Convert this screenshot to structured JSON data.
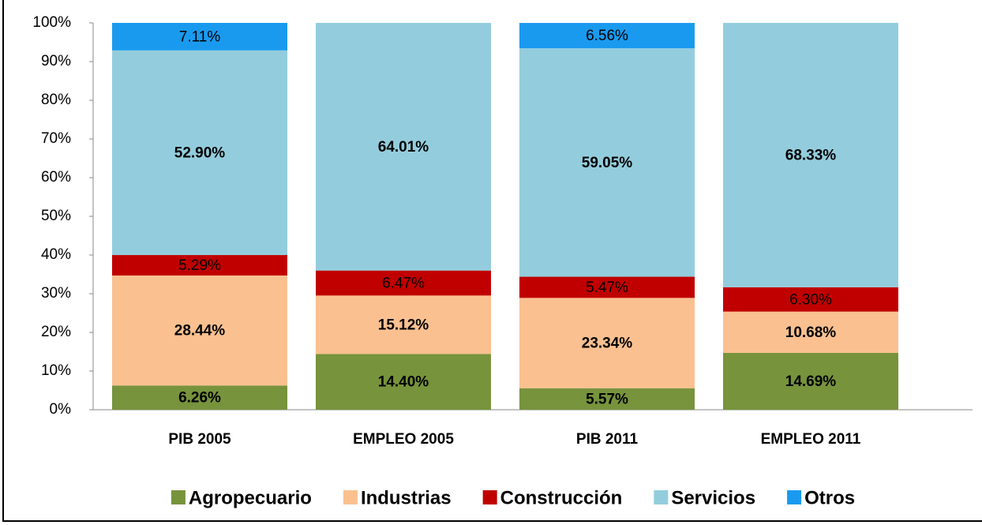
{
  "chart_data": {
    "type": "stacked_bar",
    "categories": [
      "PIB 2005",
      "EMPLEO 2005",
      "PIB 2011",
      "EMPLEO 2011"
    ],
    "series": [
      {
        "name": "Agropecuario",
        "color": "#77933c",
        "values": [
          6.26,
          14.4,
          5.57,
          14.69
        ],
        "value_labels": [
          "6.26%",
          "14.40%",
          "5.57%",
          "14.69%"
        ]
      },
      {
        "name": "Industrias",
        "color": "#fac090",
        "values": [
          28.44,
          15.12,
          23.34,
          10.68
        ],
        "value_labels": [
          "28.44%",
          "15.12%",
          "23.34%",
          "10.68%"
        ]
      },
      {
        "name": "Construcción",
        "color": "#c00000",
        "values": [
          5.29,
          6.47,
          5.47,
          6.3
        ],
        "value_labels": [
          "5.29%",
          "6.47%",
          "5.47%",
          "6.30%"
        ]
      },
      {
        "name": "Servicios",
        "color": "#93cddd",
        "values": [
          52.9,
          64.01,
          59.05,
          68.33
        ],
        "value_labels": [
          "52.90%",
          "64.01%",
          "59.05%",
          "68.33%"
        ]
      },
      {
        "name": "Otros",
        "color": "#1a9aef",
        "values": [
          7.11,
          null,
          6.56,
          null
        ],
        "value_labels": [
          "7.11%",
          null,
          "6.56%",
          null
        ]
      }
    ],
    "ylim": [
      0,
      100
    ],
    "yticks": [
      {
        "value": 0,
        "label": "0%"
      },
      {
        "value": 10,
        "label": "10%"
      },
      {
        "value": 20,
        "label": "20%"
      },
      {
        "value": 30,
        "label": "30%"
      },
      {
        "value": 40,
        "label": "40%"
      },
      {
        "value": 50,
        "label": "50%"
      },
      {
        "value": 60,
        "label": "60%"
      },
      {
        "value": 70,
        "label": "70%"
      },
      {
        "value": 80,
        "label": "80%"
      },
      {
        "value": 90,
        "label": "90%"
      },
      {
        "value": 100,
        "label": "100%"
      }
    ],
    "legend": "bottom"
  }
}
